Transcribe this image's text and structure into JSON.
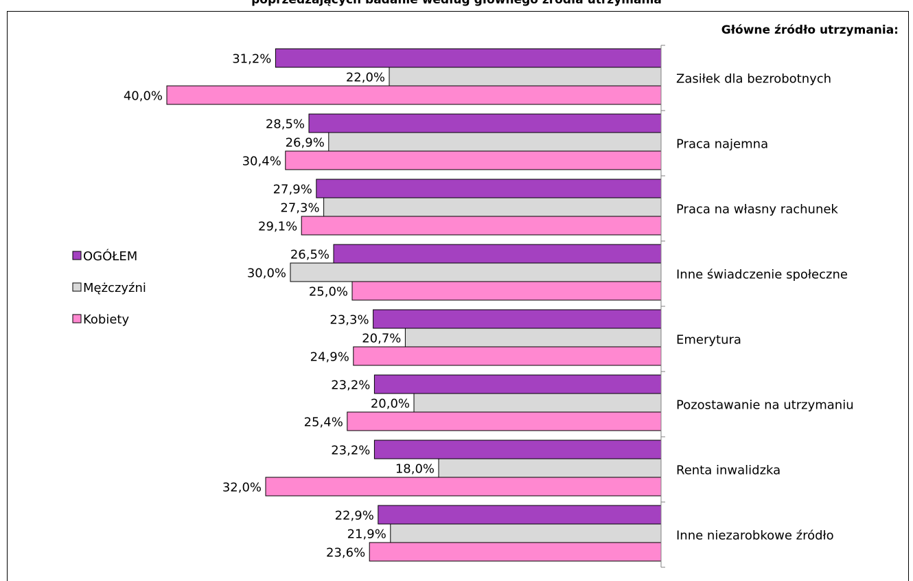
{
  "chart_data": {
    "type": "bar",
    "orientation": "horizontal",
    "title": "poprzedzających badanie według głównego źródła utrzymania",
    "category_axis_title": "Główne źródło utrzymania:",
    "categories": [
      "Zasiłek dla bezrobotnych",
      "Praca najemna",
      "Praca na własny rachunek",
      "Inne świadczenie społeczne",
      "Emerytura",
      "Pozostawanie na utrzymaniu",
      "Renta inwalidzka",
      "Inne niezarobkowe źródło"
    ],
    "series": [
      {
        "name": "OGÓŁEM",
        "color": "#a441c0",
        "values": [
          31.2,
          28.5,
          27.9,
          26.5,
          23.3,
          23.2,
          23.2,
          22.9
        ],
        "labels": [
          "31,2%",
          "28,5%",
          "27,9%",
          "26,5%",
          "23,3%",
          "23,2%",
          "23,2%",
          "22,9%"
        ]
      },
      {
        "name": "Mężczyźni",
        "color": "#d9d9d9",
        "values": [
          22.0,
          26.9,
          27.3,
          30.0,
          20.7,
          20.0,
          18.0,
          21.9
        ],
        "labels": [
          "22,0%",
          "26,9%",
          "27,3%",
          "30,0%",
          "20,7%",
          "20,0%",
          "18,0%",
          "21,9%"
        ]
      },
      {
        "name": "Kobiety",
        "color": "#ff88d0",
        "values": [
          40.0,
          30.4,
          29.1,
          25.0,
          24.9,
          25.4,
          32.0,
          23.6
        ],
        "labels": [
          "40,0%",
          "30,4%",
          "29,1%",
          "25,0%",
          "24,9%",
          "25,4%",
          "32,0%",
          "23,6%"
        ]
      }
    ],
    "value_axis": {
      "direction": "right-to-left",
      "min": 0
    },
    "legend_position": "left",
    "grid": false
  }
}
